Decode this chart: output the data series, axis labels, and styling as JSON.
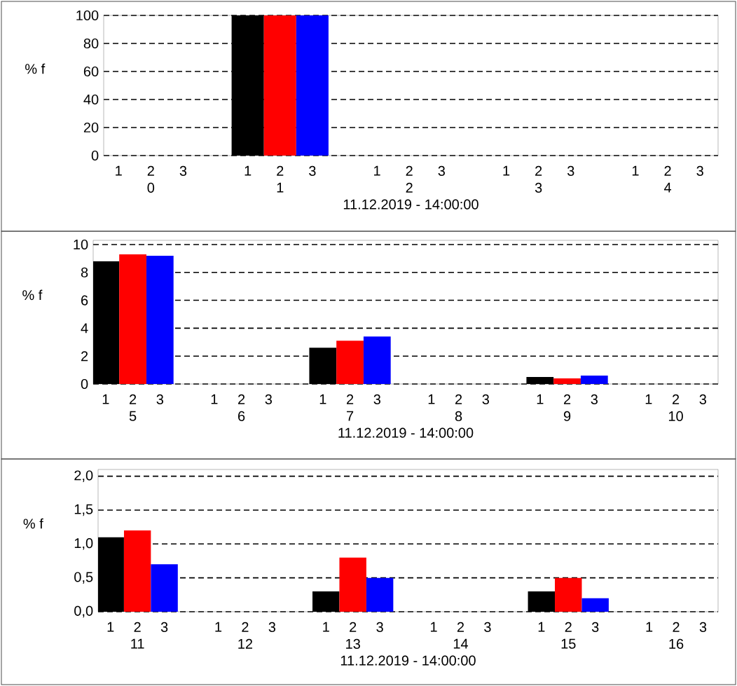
{
  "chart_data": [
    {
      "type": "bar",
      "xlabel": "11.12.2019 - 14:00:00",
      "ylabel": "% f",
      "categories": [
        "0",
        "1",
        "2",
        "3",
        "4"
      ],
      "series": [
        {
          "name": "1",
          "color": "#000000",
          "values": [
            0,
            100,
            0,
            0,
            0
          ]
        },
        {
          "name": "2",
          "color": "#ff0000",
          "values": [
            0,
            100,
            0,
            0,
            0
          ]
        },
        {
          "name": "3",
          "color": "#0000ff",
          "values": [
            0,
            100,
            0,
            0,
            0
          ]
        }
      ],
      "ylim": [
        0,
        100
      ],
      "yticks": [
        0,
        20,
        40,
        60,
        80,
        100
      ],
      "grid": "y"
    },
    {
      "type": "bar",
      "xlabel": "11.12.2019 - 14:00:00",
      "ylabel": "% f",
      "categories": [
        "5",
        "6",
        "7",
        "8",
        "9",
        "10"
      ],
      "series": [
        {
          "name": "1",
          "color": "#000000",
          "values": [
            8.8,
            0,
            2.6,
            0,
            0.5,
            0
          ]
        },
        {
          "name": "2",
          "color": "#ff0000",
          "values": [
            9.3,
            0,
            3.1,
            0,
            0.4,
            0
          ]
        },
        {
          "name": "3",
          "color": "#0000ff",
          "values": [
            9.2,
            0,
            3.4,
            0,
            0.6,
            0
          ]
        }
      ],
      "ylim": [
        0,
        10.3
      ],
      "yticks": [
        0,
        2,
        4,
        6,
        8,
        10
      ],
      "grid": "y"
    },
    {
      "type": "bar",
      "xlabel": "11.12.2019 - 14:00:00",
      "ylabel": "% f",
      "categories": [
        "11",
        "12",
        "13",
        "14",
        "15",
        "16"
      ],
      "series": [
        {
          "name": "1",
          "color": "#000000",
          "values": [
            1.1,
            0,
            0.3,
            0,
            0.3,
            0
          ]
        },
        {
          "name": "2",
          "color": "#ff0000",
          "values": [
            1.2,
            0,
            0.8,
            0,
            0.5,
            0
          ]
        },
        {
          "name": "3",
          "color": "#0000ff",
          "values": [
            0.7,
            0,
            0.5,
            0,
            0.2,
            0
          ]
        }
      ],
      "ylim": [
        0,
        2.1
      ],
      "yticks": [
        {
          "value": 0,
          "label": "0,0"
        },
        {
          "value": 0.5,
          "label": "0,5"
        },
        {
          "value": 1,
          "label": "1,0"
        },
        {
          "value": 1.5,
          "label": "1,5"
        },
        {
          "value": 2,
          "label": "2,0"
        }
      ],
      "grid": "y"
    }
  ]
}
